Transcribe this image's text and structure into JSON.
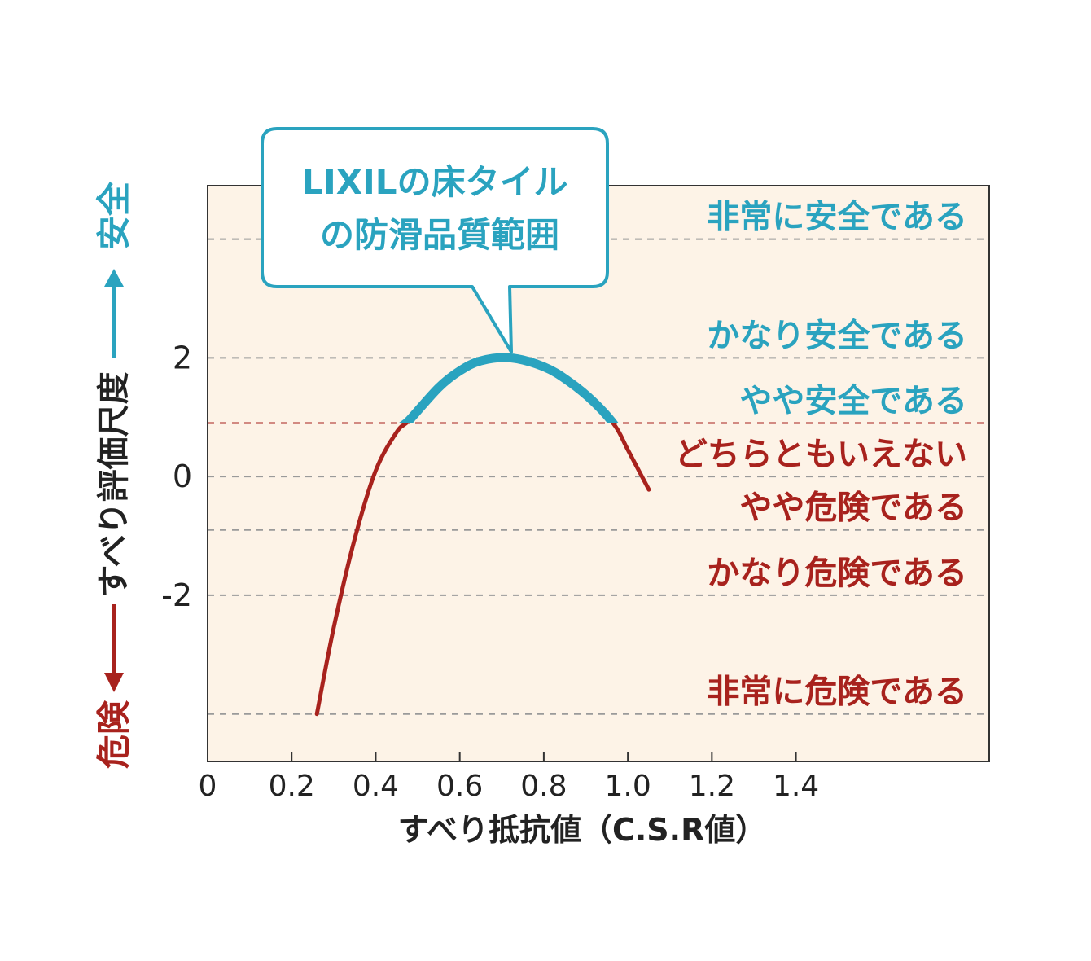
{
  "chart_data": {
    "type": "line",
    "xlabel": "すべり抵抗値（C.S.R値）",
    "ylabel": "すべり評価尺度",
    "ylabel_top": "安全",
    "ylabel_bottom": "危険",
    "x_ticks": [
      "0",
      "0.2",
      "0.4",
      "0.6",
      "0.8",
      "1.0",
      "1.2",
      "1.4"
    ],
    "y_ticks": [
      "2",
      "0",
      "-2"
    ],
    "xlim": [
      0,
      1.86
    ],
    "ylim": [
      -4.8,
      4.9
    ],
    "callout": [
      "LIXILの床タイル",
      "の防滑品質範囲"
    ],
    "levels": [
      {
        "label": "非常に安全である",
        "value": 4.0,
        "group": "safe"
      },
      {
        "label": "かなり安全である",
        "value": 2.0,
        "group": "safe"
      },
      {
        "label": "やや安全である",
        "value": 0.9,
        "group": "safe"
      },
      {
        "label": "どちらともいえない",
        "value": 0.0,
        "group": "danger"
      },
      {
        "label": "やや危険である",
        "value": -0.9,
        "group": "danger"
      },
      {
        "label": "かなり危険である",
        "value": -2.0,
        "group": "danger"
      },
      {
        "label": "非常に危険である",
        "value": -4.0,
        "group": "danger"
      }
    ],
    "threshold": 0.9,
    "highlight_range": [
      0.48,
      0.97
    ],
    "series": [
      {
        "x": [
          0.26,
          0.3,
          0.35,
          0.4,
          0.45,
          0.48,
          0.55,
          0.6,
          0.65,
          0.72,
          0.8,
          0.86,
          0.92,
          0.97,
          1.0,
          1.05
        ],
        "y": [
          -4.0,
          -2.55,
          -1.05,
          0.1,
          0.75,
          0.95,
          1.5,
          1.78,
          1.95,
          2.0,
          1.85,
          1.6,
          1.25,
          0.85,
          0.45,
          -0.22
        ]
      }
    ],
    "grid": "dashed horizontal",
    "legend": "none"
  },
  "colors": {
    "safe": "#2aa3bf",
    "danger": "#a8221d",
    "plot_bg": "#fdf3e7",
    "text": "#222222",
    "grid": "#9a9a9a"
  }
}
